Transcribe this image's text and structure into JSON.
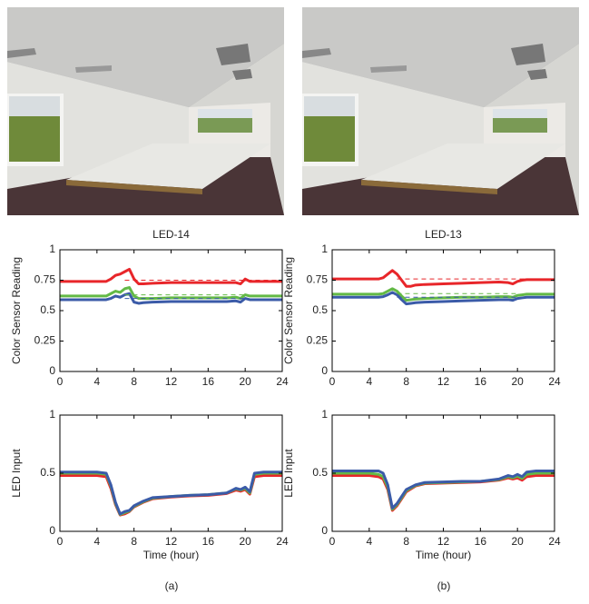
{
  "captions": [
    "(a)",
    "(b)"
  ],
  "chart_data": [
    {
      "type": "line",
      "title": "LED-14",
      "ylabel": "Color Sensor Reading",
      "x": [
        0,
        2,
        4,
        5,
        5.5,
        6,
        6.5,
        7,
        7.5,
        8,
        8.5,
        9,
        10,
        12,
        14,
        16,
        18,
        19,
        19.5,
        20,
        20.5,
        21,
        22,
        24
      ],
      "xlim": [
        0,
        24
      ],
      "xticks": [
        0,
        4,
        8,
        12,
        16,
        20,
        24
      ],
      "ylim": [
        0,
        1
      ],
      "yticks": [
        0,
        0.25,
        0.5,
        0.75,
        1
      ],
      "series": [
        {
          "color": "#e8262a",
          "values": [
            0.74,
            0.74,
            0.74,
            0.74,
            0.76,
            0.79,
            0.8,
            0.82,
            0.84,
            0.76,
            0.72,
            0.72,
            0.725,
            0.73,
            0.73,
            0.73,
            0.73,
            0.73,
            0.72,
            0.76,
            0.74,
            0.74,
            0.74,
            0.74
          ]
        },
        {
          "color": "#63b946",
          "values": [
            0.62,
            0.62,
            0.62,
            0.62,
            0.64,
            0.66,
            0.65,
            0.68,
            0.69,
            0.62,
            0.6,
            0.6,
            0.6,
            0.605,
            0.605,
            0.605,
            0.605,
            0.61,
            0.6,
            0.63,
            0.62,
            0.62,
            0.62,
            0.62
          ]
        },
        {
          "color": "#3b5ba8",
          "values": [
            0.59,
            0.59,
            0.59,
            0.59,
            0.6,
            0.62,
            0.61,
            0.63,
            0.64,
            0.57,
            0.56,
            0.565,
            0.57,
            0.575,
            0.575,
            0.575,
            0.575,
            0.58,
            0.57,
            0.6,
            0.59,
            0.59,
            0.59,
            0.59
          ]
        },
        {
          "color": "#e8262a",
          "dash": true,
          "x": [
            7,
            24
          ],
          "values": [
            0.75,
            0.75
          ]
        },
        {
          "color": "#63b946",
          "dash": true,
          "x": [
            7,
            20
          ],
          "values": [
            0.63,
            0.63
          ]
        },
        {
          "color": "#3b5ba8",
          "dash": true,
          "x": [
            7,
            20
          ],
          "values": [
            0.6,
            0.6
          ]
        }
      ]
    },
    {
      "type": "line",
      "title": "LED-13",
      "ylabel": "Color Sensor Reading",
      "x": [
        0,
        2,
        4,
        5,
        5.5,
        6,
        6.5,
        7,
        7.5,
        8,
        8.5,
        9,
        10,
        12,
        14,
        16,
        18,
        19,
        19.5,
        20,
        20.5,
        21,
        22,
        24
      ],
      "xlim": [
        0,
        24
      ],
      "xticks": [
        0,
        4,
        8,
        12,
        16,
        20,
        24
      ],
      "ylim": [
        0,
        1
      ],
      "yticks": [
        0,
        0.25,
        0.5,
        0.75,
        1
      ],
      "series": [
        {
          "color": "#e8262a",
          "values": [
            0.76,
            0.76,
            0.76,
            0.76,
            0.77,
            0.8,
            0.83,
            0.8,
            0.75,
            0.7,
            0.7,
            0.71,
            0.715,
            0.72,
            0.725,
            0.73,
            0.735,
            0.73,
            0.72,
            0.74,
            0.75,
            0.755,
            0.755,
            0.755
          ]
        },
        {
          "color": "#63b946",
          "values": [
            0.635,
            0.635,
            0.635,
            0.635,
            0.64,
            0.66,
            0.68,
            0.66,
            0.62,
            0.585,
            0.59,
            0.595,
            0.6,
            0.605,
            0.61,
            0.61,
            0.615,
            0.615,
            0.61,
            0.625,
            0.63,
            0.635,
            0.635,
            0.635
          ]
        },
        {
          "color": "#3b5ba8",
          "values": [
            0.61,
            0.61,
            0.61,
            0.61,
            0.615,
            0.63,
            0.65,
            0.63,
            0.59,
            0.555,
            0.56,
            0.565,
            0.57,
            0.575,
            0.58,
            0.585,
            0.59,
            0.59,
            0.585,
            0.6,
            0.605,
            0.61,
            0.61,
            0.61
          ]
        },
        {
          "color": "#e8262a",
          "dash": true,
          "x": [
            7,
            24
          ],
          "values": [
            0.76,
            0.76
          ]
        },
        {
          "color": "#63b946",
          "dash": true,
          "x": [
            7,
            20
          ],
          "values": [
            0.64,
            0.64
          ]
        },
        {
          "color": "#3b5ba8",
          "dash": true,
          "x": [
            7,
            20
          ],
          "values": [
            0.61,
            0.61
          ]
        }
      ]
    },
    {
      "type": "line",
      "xlabel": "Time (hour)",
      "ylabel": "LED Input",
      "x": [
        0,
        2,
        4,
        5,
        5.5,
        6,
        6.5,
        7,
        7.5,
        8,
        9,
        10,
        12,
        14,
        16,
        18,
        19,
        19.5,
        20,
        20.5,
        21,
        22,
        24
      ],
      "xlim": [
        0,
        24
      ],
      "xticks": [
        0,
        4,
        8,
        12,
        16,
        20,
        24
      ],
      "ylim": [
        0,
        1
      ],
      "yticks": [
        0,
        0.5,
        1
      ],
      "series": [
        {
          "color": "#e8262a",
          "values": [
            0.48,
            0.48,
            0.48,
            0.47,
            0.37,
            0.23,
            0.14,
            0.15,
            0.17,
            0.21,
            0.25,
            0.28,
            0.295,
            0.305,
            0.31,
            0.325,
            0.355,
            0.345,
            0.36,
            0.32,
            0.47,
            0.48,
            0.48
          ]
        },
        {
          "color": "#63b946",
          "values": [
            0.5,
            0.5,
            0.5,
            0.49,
            0.39,
            0.24,
            0.145,
            0.16,
            0.175,
            0.215,
            0.255,
            0.285,
            0.3,
            0.31,
            0.315,
            0.33,
            0.365,
            0.355,
            0.37,
            0.33,
            0.49,
            0.5,
            0.5
          ]
        },
        {
          "color": "#3b5ba8",
          "values": [
            0.51,
            0.51,
            0.51,
            0.5,
            0.4,
            0.25,
            0.15,
            0.17,
            0.18,
            0.22,
            0.26,
            0.29,
            0.3,
            0.31,
            0.315,
            0.33,
            0.37,
            0.36,
            0.38,
            0.34,
            0.5,
            0.51,
            0.51
          ]
        }
      ]
    },
    {
      "type": "line",
      "xlabel": "Time (hour)",
      "ylabel": "LED Input",
      "x": [
        0,
        2,
        4,
        5,
        5.5,
        6,
        6.5,
        7,
        7.5,
        8,
        9,
        10,
        12,
        14,
        16,
        18,
        19,
        19.5,
        20,
        20.5,
        21,
        22,
        24
      ],
      "xlim": [
        0,
        24
      ],
      "xticks": [
        0,
        4,
        8,
        12,
        16,
        20,
        24
      ],
      "ylim": [
        0,
        1
      ],
      "yticks": [
        0,
        0.5,
        1
      ],
      "series": [
        {
          "color": "#e8262a",
          "values": [
            0.48,
            0.48,
            0.48,
            0.47,
            0.45,
            0.36,
            0.18,
            0.22,
            0.28,
            0.34,
            0.39,
            0.41,
            0.415,
            0.42,
            0.425,
            0.44,
            0.46,
            0.45,
            0.46,
            0.44,
            0.47,
            0.48,
            0.48
          ]
        },
        {
          "color": "#63b946",
          "values": [
            0.5,
            0.5,
            0.5,
            0.49,
            0.47,
            0.38,
            0.19,
            0.23,
            0.29,
            0.35,
            0.395,
            0.415,
            0.42,
            0.425,
            0.43,
            0.445,
            0.47,
            0.46,
            0.475,
            0.455,
            0.49,
            0.5,
            0.5
          ]
        },
        {
          "color": "#3b5ba8",
          "values": [
            0.52,
            0.52,
            0.52,
            0.52,
            0.5,
            0.4,
            0.2,
            0.24,
            0.3,
            0.36,
            0.4,
            0.42,
            0.425,
            0.43,
            0.43,
            0.45,
            0.48,
            0.47,
            0.49,
            0.47,
            0.51,
            0.52,
            0.52
          ]
        }
      ]
    }
  ]
}
